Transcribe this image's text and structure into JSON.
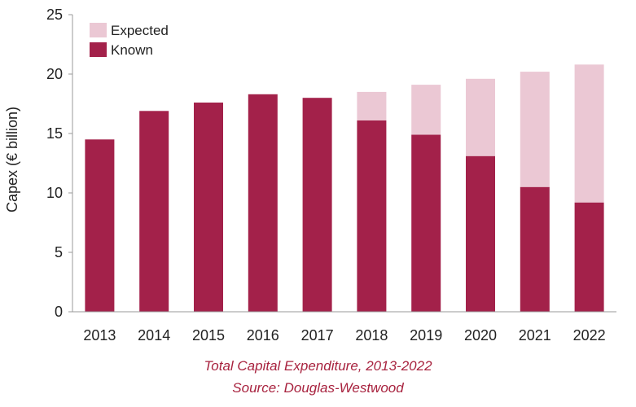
{
  "chart_data": {
    "type": "bar",
    "stacked": true,
    "categories": [
      "2013",
      "2014",
      "2015",
      "2016",
      "2017",
      "2018",
      "2019",
      "2020",
      "2021",
      "2022"
    ],
    "series": [
      {
        "name": "Known",
        "color": "#a3214a",
        "values": [
          14.5,
          16.9,
          17.6,
          18.3,
          18.0,
          16.1,
          14.9,
          13.1,
          10.5,
          9.2
        ]
      },
      {
        "name": "Expected",
        "color": "#ebc8d4",
        "values": [
          0,
          0,
          0,
          0,
          0,
          2.4,
          4.2,
          6.5,
          9.7,
          11.6
        ]
      }
    ],
    "legend": {
      "position": "top-left",
      "order": [
        "Expected",
        "Known"
      ]
    },
    "ylabel": "Capex (€ billion)",
    "xlabel": "",
    "ylim": [
      0,
      25
    ],
    "yticks": [
      0,
      5,
      10,
      15,
      20,
      25
    ],
    "grid": false
  },
  "caption": {
    "title": "Total Capital Expenditure, 2013-2022",
    "source": "Source: Douglas-Westwood"
  }
}
